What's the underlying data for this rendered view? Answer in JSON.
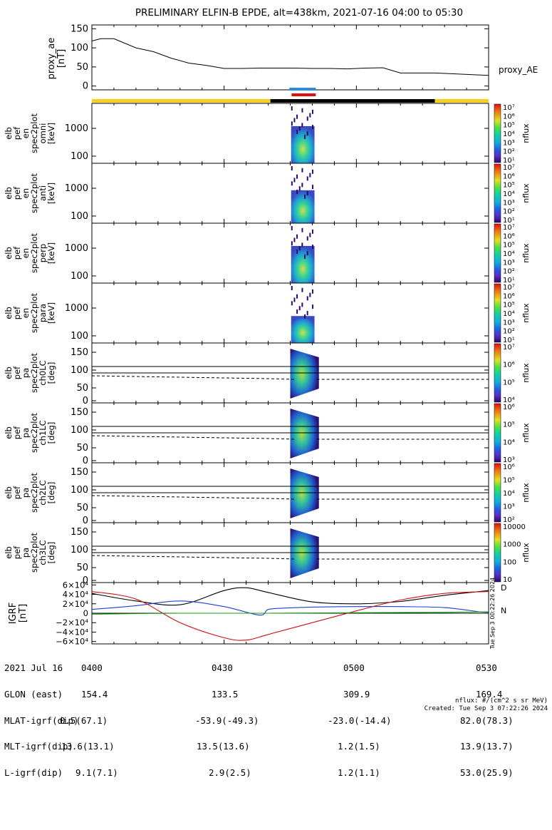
{
  "title": "PRELIMINARY ELFIN-B EPDE, alt=438km, 2021-07-16 04:00 to 05:30",
  "ae_panel": {
    "ylabel": "proxy_ae\n[nT]",
    "legend": "proxy_AE",
    "yticks": [
      "150",
      "100",
      "50",
      "0"
    ]
  },
  "spec_panels": [
    {
      "ylabel": [
        "elb",
        "pef",
        "en",
        "spec2plot",
        "omni",
        "[keV]"
      ],
      "yticks": [
        "1000",
        "100"
      ],
      "zticks": [
        "10⁷",
        "10⁶",
        "10⁵",
        "10⁴",
        "10³",
        "10²",
        "10¹"
      ],
      "zlabel": "nflux"
    },
    {
      "ylabel": [
        "elb",
        "pef",
        "en",
        "spec2plot",
        "anti",
        "[keV]"
      ],
      "yticks": [
        "1000",
        "100"
      ],
      "zticks": [
        "10⁷",
        "10⁶",
        "10⁵",
        "10⁴",
        "10³",
        "10²",
        "10¹"
      ],
      "zlabel": "nflux"
    },
    {
      "ylabel": [
        "elb",
        "pef",
        "en",
        "spec2plot",
        "perp",
        "[keV]"
      ],
      "yticks": [
        "1000",
        "100"
      ],
      "zticks": [
        "10⁷",
        "10⁶",
        "10⁵",
        "10⁴",
        "10³",
        "10²",
        "10¹"
      ],
      "zlabel": "nflux"
    },
    {
      "ylabel": [
        "elb",
        "pef",
        "en",
        "spec2plot",
        "para",
        "[keV]"
      ],
      "yticks": [
        "1000",
        "100"
      ],
      "zticks": [
        "10⁷",
        "10⁶",
        "10⁵",
        "10⁴",
        "10³",
        "10²",
        "10¹"
      ],
      "zlabel": "nflux"
    },
    {
      "ylabel": [
        "elb",
        "pef",
        "pa",
        "spec2plot",
        "ch0LC",
        "[deg]"
      ],
      "yticks": [
        "150",
        "100",
        "50",
        "0"
      ],
      "zticks": [
        "10⁷",
        "10⁶",
        "10⁵",
        "10⁴"
      ],
      "zlabel": "nflux"
    },
    {
      "ylabel": [
        "elb",
        "pef",
        "pa",
        "spec2plot",
        "ch1LC",
        "[deg]"
      ],
      "yticks": [
        "150",
        "100",
        "50",
        "0"
      ],
      "zticks": [
        "10⁶",
        "10⁵",
        "10⁴",
        "10³"
      ],
      "zlabel": "nflux"
    },
    {
      "ylabel": [
        "elb",
        "pef",
        "pa",
        "spec2plot",
        "ch2LC",
        "[deg]"
      ],
      "yticks": [
        "150",
        "100",
        "50",
        "0"
      ],
      "zticks": [
        "10⁶",
        "10⁵",
        "10⁴",
        "10³",
        "10²"
      ],
      "zlabel": "nflux"
    },
    {
      "ylabel": [
        "elb",
        "pef",
        "pa",
        "spec2plot",
        "ch3LC",
        "[deg]"
      ],
      "yticks": [
        "150",
        "100",
        "50",
        "0"
      ],
      "zticks": [
        "10000",
        "1000",
        "100",
        "10"
      ],
      "zlabel": "nflux"
    }
  ],
  "igrf_panel": {
    "ylabel": "IGRF\n[nT]",
    "yticks": [
      "6×10⁴",
      "4×10⁴",
      "2×10⁴",
      "0",
      "−2×10⁴",
      "−4×10⁴",
      "−6×10⁴"
    ],
    "legend_D": "D",
    "legend_N": "N",
    "side_stamp": "Tue Sep  3 00:22:26 2024"
  },
  "footer": {
    "rows": [
      {
        "label": "2021 Jul 16",
        "values": [
          "0400",
          "0430",
          "0500",
          "0530"
        ]
      },
      {
        "label": "GLON (east)",
        "values": [
          "154.4",
          "133.5",
          "309.9",
          "169.4"
        ]
      },
      {
        "label": "MLAT-igrf(dip)",
        "values": [
          "0.5(67.1)",
          "-53.9(-49.3)",
          "-23.0(-14.4)",
          "82.0(78.3)"
        ]
      },
      {
        "label": "MLT-igrf(dip)",
        "values": [
          "13.6(13.1)",
          "13.5(13.6)",
          "1.2(1.5)",
          "13.9(13.7)"
        ]
      },
      {
        "label": "L-igrf(dip)",
        "values": [
          "9.1(7.1)",
          "2.9(2.5)",
          "1.2(1.1)",
          "53.0(25.9)"
        ]
      }
    ],
    "units_note": "nflux: #/(cm^2 s sr MeV)",
    "created": "Created: Tue Sep  3 07:22:26 2024"
  },
  "colors": {
    "orbit_bar_yellow": "#f5d020",
    "orbit_bar_black": "#000000",
    "sci_zone_blue": "#2a8ce0",
    "sci_zone_red": "#e01010",
    "bz_black": "#000000",
    "bx_blue": "#1f3fd0",
    "by_red": "#d01010",
    "bn_green": "#10a010"
  },
  "chart_data": [
    {
      "type": "line",
      "title": "",
      "ylabel": "proxy_ae [nT]",
      "ylim": [
        -10,
        160
      ],
      "x_range": [
        "04:00",
        "05:30"
      ],
      "series": [
        {
          "name": "proxy_AE",
          "x": [
            0,
            2,
            5,
            10,
            14,
            18,
            22,
            26,
            30,
            34,
            38,
            42,
            46,
            50,
            54,
            58,
            62,
            66,
            70,
            74,
            78,
            82,
            86,
            90
          ],
          "values": [
            118,
            124,
            124,
            100,
            90,
            73,
            60,
            54,
            46,
            46,
            47,
            47,
            47,
            46,
            46,
            45,
            47,
            48,
            34,
            34,
            34,
            32,
            30,
            28
          ]
        }
      ]
    },
    {
      "type": "line",
      "title": "",
      "ylabel": "IGRF [nT]",
      "ylim": [
        -65000,
        65000
      ],
      "x_range": [
        "04:00",
        "05:30"
      ],
      "series": [
        {
          "name": "",
          "x": [
            0,
            10,
            20,
            30,
            35,
            40,
            50,
            60,
            70,
            80,
            90
          ],
          "values": [
            42000,
            26000,
            18000,
            48000,
            54000,
            44000,
            24000,
            20000,
            25000,
            38000,
            48000
          ]
        },
        {
          "name": "",
          "x": [
            0,
            10,
            20,
            30,
            38,
            40,
            44,
            50,
            60,
            70,
            80,
            88,
            90
          ],
          "values": [
            8000,
            16000,
            26000,
            14000,
            -4000,
            8000,
            11000,
            13000,
            14000,
            14000,
            12000,
            3000,
            2000
          ]
        },
        {
          "name": "",
          "x": [
            0,
            10,
            20,
            30,
            35,
            40,
            50,
            60,
            70,
            80,
            90
          ],
          "values": [
            46000,
            30000,
            -20000,
            -52000,
            -57000,
            -45000,
            -20000,
            5000,
            28000,
            42000,
            46000
          ]
        },
        {
          "name": "",
          "x": [
            0,
            20,
            40,
            60,
            80,
            90
          ],
          "values": [
            -2000,
            0,
            0,
            1000,
            2000,
            3000
          ]
        }
      ]
    }
  ]
}
